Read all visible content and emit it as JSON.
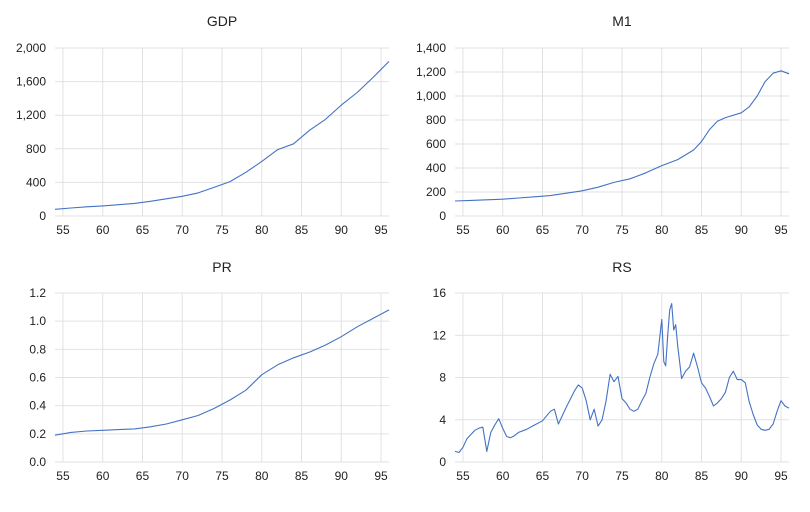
{
  "chart_data": [
    {
      "type": "line",
      "title": "GDP",
      "xlim": [
        1954,
        1996
      ],
      "ylim": [
        0,
        2000
      ],
      "xticks": [
        55,
        60,
        65,
        70,
        75,
        80,
        85,
        90,
        95
      ],
      "yticks": [
        0,
        400,
        800,
        1200,
        1600,
        2000
      ],
      "ytick_labels": [
        "0",
        "400",
        "800",
        "1,200",
        "1,600",
        "2,000"
      ],
      "grid": true,
      "series": [
        {
          "color": "#4472c4",
          "x": [
            1954,
            1956,
            1958,
            1960,
            1962,
            1964,
            1966,
            1968,
            1970,
            1972,
            1974,
            1976,
            1978,
            1980,
            1982,
            1984,
            1986,
            1988,
            1990,
            1992,
            1994,
            1996
          ],
          "y": [
            80,
            95,
            110,
            120,
            135,
            150,
            175,
            205,
            235,
            275,
            340,
            410,
            520,
            650,
            790,
            860,
            1020,
            1150,
            1320,
            1470,
            1650,
            1840
          ]
        }
      ]
    },
    {
      "type": "line",
      "title": "M1",
      "xlim": [
        1954,
        1996
      ],
      "ylim": [
        0,
        1400
      ],
      "xticks": [
        55,
        60,
        65,
        70,
        75,
        80,
        85,
        90,
        95
      ],
      "yticks": [
        0,
        200,
        400,
        600,
        800,
        1000,
        1200,
        1400
      ],
      "ytick_labels": [
        "0",
        "200",
        "400",
        "600",
        "800",
        "1,000",
        "1,200",
        "1,400"
      ],
      "grid": true,
      "series": [
        {
          "color": "#4472c4",
          "x": [
            1954,
            1956,
            1958,
            1960,
            1962,
            1964,
            1966,
            1968,
            1970,
            1972,
            1974,
            1976,
            1978,
            1980,
            1982,
            1984,
            1985,
            1986,
            1987,
            1988,
            1990,
            1991,
            1992,
            1993,
            1994,
            1995,
            1996
          ],
          "y": [
            125,
            130,
            135,
            140,
            150,
            160,
            170,
            190,
            210,
            240,
            280,
            310,
            360,
            420,
            470,
            550,
            620,
            720,
            790,
            820,
            860,
            910,
            1000,
            1120,
            1190,
            1210,
            1185
          ]
        }
      ]
    },
    {
      "type": "line",
      "title": "PR",
      "xlim": [
        1954,
        1996
      ],
      "ylim": [
        0,
        1.2
      ],
      "xticks": [
        55,
        60,
        65,
        70,
        75,
        80,
        85,
        90,
        95
      ],
      "yticks": [
        0,
        0.2,
        0.4,
        0.6,
        0.8,
        1.0,
        1.2
      ],
      "ytick_labels": [
        "0.0",
        "0.2",
        "0.4",
        "0.6",
        "0.8",
        "1.0",
        "1.2"
      ],
      "grid": true,
      "series": [
        {
          "color": "#4472c4",
          "x": [
            1954,
            1956,
            1958,
            1960,
            1962,
            1964,
            1966,
            1968,
            1970,
            1972,
            1974,
            1976,
            1978,
            1980,
            1982,
            1984,
            1986,
            1988,
            1990,
            1992,
            1994,
            1996
          ],
          "y": [
            0.19,
            0.21,
            0.22,
            0.225,
            0.23,
            0.235,
            0.25,
            0.27,
            0.3,
            0.33,
            0.38,
            0.44,
            0.51,
            0.62,
            0.69,
            0.74,
            0.78,
            0.83,
            0.89,
            0.96,
            1.02,
            1.08
          ]
        }
      ]
    },
    {
      "type": "line",
      "title": "RS",
      "xlim": [
        1954,
        1996
      ],
      "ylim": [
        0,
        16
      ],
      "xticks": [
        55,
        60,
        65,
        70,
        75,
        80,
        85,
        90,
        95
      ],
      "yticks": [
        0,
        4,
        8,
        12,
        16
      ],
      "ytick_labels": [
        "0",
        "4",
        "8",
        "12",
        "16"
      ],
      "grid": true,
      "series": [
        {
          "color": "#4472c4",
          "x": [
            1954.0,
            1954.5,
            1955.0,
            1955.5,
            1956.0,
            1956.5,
            1957.0,
            1957.5,
            1958.0,
            1958.5,
            1959.0,
            1959.5,
            1960.0,
            1960.5,
            1961.0,
            1961.5,
            1962.0,
            1963.0,
            1964.0,
            1965.0,
            1966.0,
            1966.5,
            1967.0,
            1968.0,
            1969.0,
            1969.5,
            1970.0,
            1970.5,
            1971.0,
            1971.5,
            1972.0,
            1972.5,
            1973.0,
            1973.5,
            1974.0,
            1974.5,
            1975.0,
            1975.5,
            1976.0,
            1976.5,
            1977.0,
            1977.5,
            1978.0,
            1978.5,
            1979.0,
            1979.5,
            1980.0,
            1980.25,
            1980.5,
            1980.75,
            1981.0,
            1981.25,
            1981.5,
            1981.75,
            1982.0,
            1982.5,
            1983.0,
            1983.5,
            1984.0,
            1984.5,
            1985.0,
            1985.5,
            1986.0,
            1986.5,
            1987.0,
            1987.5,
            1988.0,
            1988.5,
            1989.0,
            1989.5,
            1990.0,
            1990.5,
            1991.0,
            1991.5,
            1992.0,
            1992.5,
            1993.0,
            1993.5,
            1994.0,
            1994.5,
            1995.0,
            1995.5,
            1996.0
          ],
          "y": [
            1.0,
            0.9,
            1.4,
            2.2,
            2.6,
            3.0,
            3.2,
            3.3,
            1.0,
            2.8,
            3.5,
            4.1,
            3.2,
            2.4,
            2.3,
            2.5,
            2.8,
            3.1,
            3.5,
            3.9,
            4.8,
            5.0,
            3.6,
            5.2,
            6.7,
            7.3,
            7.0,
            5.8,
            4.0,
            5.0,
            3.4,
            4.0,
            5.8,
            8.3,
            7.6,
            8.1,
            6.0,
            5.6,
            5.0,
            4.8,
            5.0,
            5.8,
            6.5,
            8.0,
            9.3,
            10.2,
            13.5,
            9.5,
            9.1,
            12.0,
            14.4,
            15.0,
            12.5,
            13.0,
            11.0,
            7.9,
            8.6,
            9.0,
            10.3,
            9.0,
            7.5,
            7.0,
            6.2,
            5.3,
            5.6,
            6.0,
            6.6,
            8.0,
            8.6,
            7.8,
            7.8,
            7.5,
            5.7,
            4.5,
            3.5,
            3.1,
            3.0,
            3.1,
            3.6,
            4.8,
            5.8,
            5.3,
            5.1
          ]
        }
      ]
    }
  ]
}
